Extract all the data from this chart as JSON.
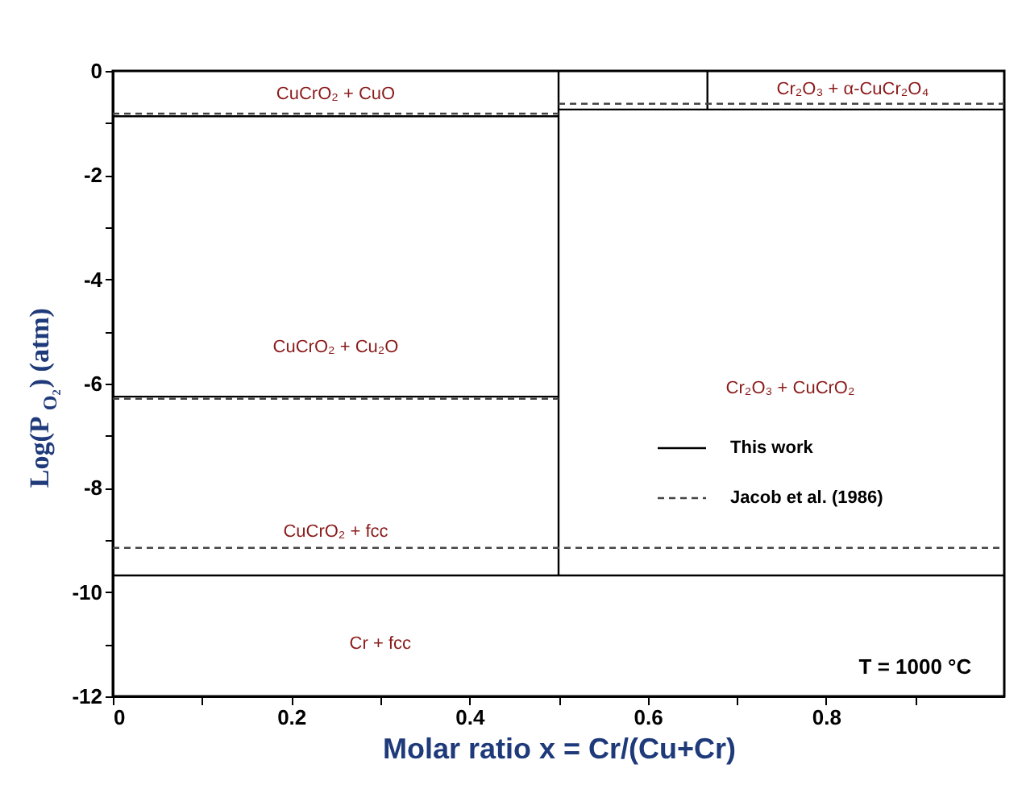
{
  "chart_data": {
    "type": "line",
    "xlabel": "Molar ratio x = Cr/(Cu+Cr)",
    "ylabel": "Log(P$_{O₂}$) (atm)",
    "xlim": [
      0,
      1
    ],
    "ylim": [
      -12,
      0
    ],
    "xticks": [
      0,
      {
        "value": 0.1,
        "label": null
      },
      0.2,
      {
        "value": 0.3,
        "label": null
      },
      0.4,
      {
        "value": 0.5,
        "label": null
      },
      0.6,
      {
        "value": 0.7,
        "label": null
      },
      0.8,
      {
        "value": 0.9,
        "label": null
      }
    ],
    "yticks": [
      -12,
      {
        "value": -11,
        "label": null
      },
      -10,
      {
        "value": -9,
        "label": null
      },
      -8,
      {
        "value": -7,
        "label": null
      },
      -6,
      {
        "value": -5,
        "label": null
      },
      -4,
      {
        "value": -3,
        "label": null
      },
      -2,
      {
        "value": -1,
        "label": null
      },
      0
    ],
    "grid": false,
    "legend": "right",
    "series": [
      {
        "name": "This work",
        "color": "#000000",
        "line_style": "solid",
        "x": [
          0,
          0.5
        ],
        "values": [
          -0.87,
          -0.87
        ]
      },
      {
        "color": "#000000",
        "line_style": "solid",
        "x": [
          0,
          0.5
        ],
        "values": [
          -6.25,
          -6.25
        ]
      },
      {
        "color": "#000000",
        "line_style": "solid",
        "x": [
          0,
          1
        ],
        "values": [
          -9.68,
          -9.68
        ]
      },
      {
        "color": "#000000",
        "line_style": "solid",
        "x": [
          0.5,
          0.5
        ],
        "values": [
          -9.68,
          0
        ]
      },
      {
        "color": "#000000",
        "line_style": "solid",
        "x": [
          0.5,
          1
        ],
        "values": [
          -0.74,
          -0.74
        ]
      },
      {
        "color": "#000000",
        "line_style": "solid",
        "x": [
          0.667,
          0.667
        ],
        "values": [
          -0.74,
          0
        ]
      },
      {
        "name": "Jacob et al. (1986)",
        "color": "#444444",
        "line_style": "dashed",
        "x": [
          0,
          0.5
        ],
        "values": [
          -0.82,
          -0.82
        ]
      },
      {
        "color": "#444444",
        "line_style": "dashed",
        "x": [
          0.5,
          1
        ],
        "values": [
          -0.63,
          -0.63
        ]
      },
      {
        "color": "#444444",
        "line_style": "dashed",
        "x": [
          0,
          0.5
        ],
        "values": [
          -6.29,
          -6.29
        ]
      },
      {
        "color": "#444444",
        "line_style": "dashed",
        "x": [
          0,
          1
        ],
        "values": [
          -9.15,
          -9.15
        ]
      }
    ],
    "annotations": [
      "CuCrO₂ + CuO",
      "Cr₂O₃ + α-CuCr₂O₄",
      "CuCrO₂ + Cu₂O",
      "Cr₂O₃ + CuCrO₂",
      "CuCrO₂ + fcc",
      "Cr + fcc",
      "T = 1000 °C"
    ]
  }
}
